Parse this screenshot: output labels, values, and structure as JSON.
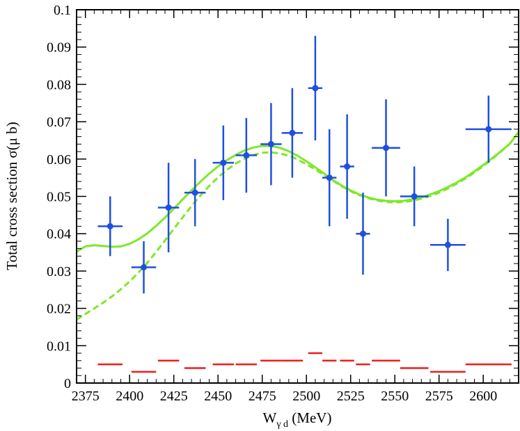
{
  "chart_data": {
    "type": "scatter",
    "xlabel": "W",
    "xlabel_subscript": "γ d",
    "xlabel_unit": " (MeV)",
    "ylabel": "Total cross section σ(μ b)",
    "xlim": [
      2370,
      2620
    ],
    "ylim": [
      0,
      0.1
    ],
    "xticks": [
      2375,
      2400,
      2425,
      2450,
      2475,
      2500,
      2525,
      2550,
      2575,
      2600
    ],
    "yticks": [
      0,
      0.01,
      0.02,
      0.03,
      0.04,
      0.05,
      0.06,
      0.07,
      0.08,
      0.09,
      0.1
    ],
    "ytick_labels": [
      "0",
      "0.01",
      "0.02",
      "0.03",
      "0.04",
      "0.05",
      "0.06",
      "0.07",
      "0.08",
      "0.09",
      "0.1"
    ],
    "grid": false,
    "legend": "none",
    "colors": {
      "data": "#1f4fe0",
      "fit": "#7ee82a",
      "systematic": "#ee1c1c"
    },
    "measurements": [
      {
        "x": 2389,
        "xerr": 7,
        "y": 0.042,
        "ylo": 0.034,
        "yhi": 0.05
      },
      {
        "x": 2408,
        "xerr": 7,
        "y": 0.031,
        "ylo": 0.024,
        "yhi": 0.038
      },
      {
        "x": 2422,
        "xerr": 6,
        "y": 0.047,
        "ylo": 0.035,
        "yhi": 0.059
      },
      {
        "x": 2437,
        "xerr": 6,
        "y": 0.051,
        "ylo": 0.042,
        "yhi": 0.06
      },
      {
        "x": 2453,
        "xerr": 6,
        "y": 0.059,
        "ylo": 0.049,
        "yhi": 0.069
      },
      {
        "x": 2466,
        "xerr": 6,
        "y": 0.061,
        "ylo": 0.051,
        "yhi": 0.071
      },
      {
        "x": 2480,
        "xerr": 6,
        "y": 0.064,
        "ylo": 0.053,
        "yhi": 0.075
      },
      {
        "x": 2492,
        "xerr": 6,
        "y": 0.067,
        "ylo": 0.055,
        "yhi": 0.079
      },
      {
        "x": 2505,
        "xerr": 4,
        "y": 0.079,
        "ylo": 0.065,
        "yhi": 0.093
      },
      {
        "x": 2513,
        "xerr": 4,
        "y": 0.055,
        "ylo": 0.042,
        "yhi": 0.068
      },
      {
        "x": 2523,
        "xerr": 4,
        "y": 0.058,
        "ylo": 0.044,
        "yhi": 0.072
      },
      {
        "x": 2532,
        "xerr": 4,
        "y": 0.04,
        "ylo": 0.029,
        "yhi": 0.051
      },
      {
        "x": 2545,
        "xerr": 8,
        "y": 0.063,
        "ylo": 0.05,
        "yhi": 0.076
      },
      {
        "x": 2561,
        "xerr": 8,
        "y": 0.05,
        "ylo": 0.042,
        "yhi": 0.058
      },
      {
        "x": 2580,
        "xerr": 10,
        "y": 0.037,
        "ylo": 0.03,
        "yhi": 0.044
      },
      {
        "x": 2603,
        "xerr": 13,
        "y": 0.068,
        "ylo": 0.059,
        "yhi": 0.077
      }
    ],
    "systematic": [
      {
        "x0": 2382,
        "x1": 2396,
        "y": 0.005
      },
      {
        "x0": 2401,
        "x1": 2415,
        "y": 0.003
      },
      {
        "x0": 2416,
        "x1": 2428,
        "y": 0.006
      },
      {
        "x0": 2431,
        "x1": 2443,
        "y": 0.004
      },
      {
        "x0": 2447,
        "x1": 2459,
        "y": 0.005
      },
      {
        "x0": 2460,
        "x1": 2472,
        "y": 0.005
      },
      {
        "x0": 2474,
        "x1": 2486,
        "y": 0.006
      },
      {
        "x0": 2486,
        "x1": 2498,
        "y": 0.006
      },
      {
        "x0": 2501,
        "x1": 2509,
        "y": 0.008
      },
      {
        "x0": 2509,
        "x1": 2517,
        "y": 0.006
      },
      {
        "x0": 2519,
        "x1": 2527,
        "y": 0.006
      },
      {
        "x0": 2528,
        "x1": 2536,
        "y": 0.005
      },
      {
        "x0": 2537,
        "x1": 2553,
        "y": 0.006
      },
      {
        "x0": 2553,
        "x1": 2569,
        "y": 0.004
      },
      {
        "x0": 2570,
        "x1": 2590,
        "y": 0.003
      },
      {
        "x0": 2590,
        "x1": 2616,
        "y": 0.005
      }
    ],
    "curves": [
      {
        "style": "solid",
        "x": [
          2370,
          2375,
          2380,
          2385,
          2390,
          2395,
          2400,
          2405,
          2410,
          2415,
          2420,
          2425,
          2430,
          2435,
          2440,
          2445,
          2450,
          2455,
          2460,
          2465,
          2470,
          2475,
          2480,
          2485,
          2490,
          2495,
          2500,
          2505,
          2510,
          2515,
          2520,
          2525,
          2530,
          2535,
          2540,
          2545,
          2550,
          2555,
          2560,
          2565,
          2570,
          2575,
          2580,
          2585,
          2590,
          2595,
          2600,
          2605,
          2610,
          2615,
          2620
        ],
        "y": [
          0.0352,
          0.0366,
          0.0369,
          0.0367,
          0.0365,
          0.0366,
          0.0373,
          0.0385,
          0.0401,
          0.0421,
          0.0443,
          0.0467,
          0.0492,
          0.0516,
          0.0539,
          0.0561,
          0.058,
          0.0597,
          0.0611,
          0.0623,
          0.0631,
          0.0635,
          0.0635,
          0.063,
          0.0621,
          0.0609,
          0.0594,
          0.0578,
          0.0561,
          0.0544,
          0.0529,
          0.0516,
          0.0505,
          0.0497,
          0.0491,
          0.0488,
          0.0487,
          0.0488,
          0.0492,
          0.0497,
          0.0505,
          0.0514,
          0.0525,
          0.0537,
          0.0551,
          0.0567,
          0.0584,
          0.0602,
          0.0621,
          0.0641,
          0.0672
        ]
      },
      {
        "style": "dashed",
        "x": [
          2370,
          2375,
          2380,
          2385,
          2390,
          2395,
          2400,
          2405,
          2410,
          2415,
          2420,
          2425,
          2430,
          2435,
          2440,
          2445,
          2450,
          2455,
          2460,
          2465,
          2470,
          2475,
          2480,
          2485,
          2490,
          2495,
          2500,
          2505,
          2510,
          2515,
          2520,
          2525,
          2530,
          2535,
          2540,
          2545,
          2550,
          2555,
          2560,
          2565,
          2570,
          2575,
          2580,
          2585,
          2590,
          2595,
          2600,
          2605,
          2610,
          2615,
          2620
        ],
        "y": [
          0.017,
          0.0185,
          0.02,
          0.0215,
          0.0232,
          0.0251,
          0.0272,
          0.0296,
          0.0322,
          0.0351,
          0.0382,
          0.0413,
          0.0444,
          0.0474,
          0.0502,
          0.0528,
          0.0551,
          0.0571,
          0.0588,
          0.0601,
          0.0611,
          0.0617,
          0.0618,
          0.0615,
          0.0609,
          0.0599,
          0.0586,
          0.0572,
          0.0557,
          0.0542,
          0.0527,
          0.0514,
          0.0503,
          0.0495,
          0.0489,
          0.0485,
          0.0484,
          0.0485,
          0.0488,
          0.0494,
          0.0501,
          0.051,
          0.0521,
          0.0534,
          0.0548,
          0.0564,
          0.0581,
          0.06,
          0.062,
          0.0641,
          0.0672
        ]
      }
    ]
  }
}
